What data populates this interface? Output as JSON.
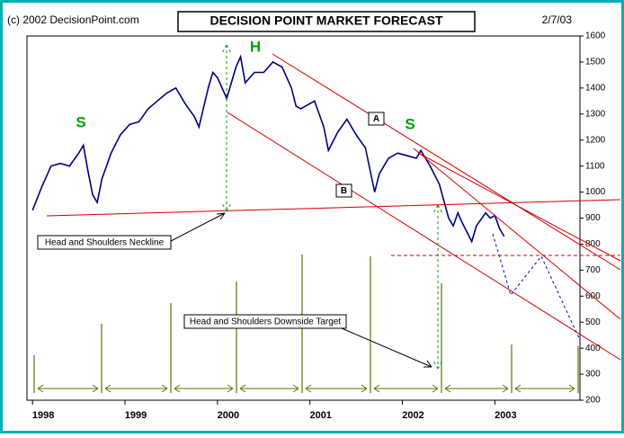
{
  "chart_data": {
    "type": "line",
    "title": "DECISION POINT MARKET FORECAST",
    "source": "(c) 2002 DecisionPoint.com",
    "date": "2/7/03",
    "annotations": [
      "S",
      "H",
      "S",
      "A",
      "B",
      "Head and Shoulders Neckline",
      "Head and Shoulders Downside Target"
    ],
    "x": [
      1998.0,
      1998.1,
      1998.2,
      1998.3,
      1998.4,
      1998.5,
      1998.55,
      1998.6,
      1998.65,
      1998.7,
      1998.75,
      1998.85,
      1998.95,
      1999.05,
      1999.15,
      1999.25,
      1999.35,
      1999.45,
      1999.55,
      1999.65,
      1999.75,
      1999.8,
      1999.9,
      1999.95,
      2000.0,
      2000.1,
      2000.2,
      2000.25,
      2000.3,
      2000.4,
      2000.5,
      2000.6,
      2000.7,
      2000.75,
      2000.8,
      2000.85,
      2000.9,
      2000.95,
      2001.05,
      2001.15,
      2001.2,
      2001.3,
      2001.4,
      2001.5,
      2001.6,
      2001.7,
      2001.75,
      2001.85,
      2001.95,
      2002.05,
      2002.15,
      2002.2,
      2002.3,
      2002.4,
      2002.5,
      2002.55,
      2002.6,
      2002.65,
      2002.75,
      2002.8,
      2002.9,
      2002.95,
      2003.0,
      2003.05,
      2003.1
    ],
    "values": [
      930,
      1020,
      1100,
      1110,
      1100,
      1150,
      1180,
      1080,
      990,
      960,
      1050,
      1150,
      1220,
      1260,
      1270,
      1320,
      1350,
      1380,
      1400,
      1340,
      1290,
      1250,
      1400,
      1460,
      1440,
      1360,
      1480,
      1520,
      1420,
      1460,
      1460,
      1500,
      1480,
      1440,
      1400,
      1330,
      1320,
      1330,
      1350,
      1250,
      1160,
      1230,
      1280,
      1220,
      1170,
      1000,
      1070,
      1130,
      1150,
      1140,
      1130,
      1160,
      1100,
      1030,
      900,
      870,
      920,
      880,
      810,
      870,
      920,
      900,
      910,
      860,
      830
    ],
    "color": "#000080",
    "xlim": [
      1997.94,
      2003.92
    ],
    "xticks": [
      1998,
      1999,
      2000,
      2001,
      2002,
      2003
    ],
    "ylim": [
      200,
      1600
    ],
    "yticks": [
      200,
      300,
      400,
      500,
      600,
      700,
      800,
      900,
      1000,
      1100,
      1200,
      1300,
      1400,
      1500,
      1600
    ]
  }
}
